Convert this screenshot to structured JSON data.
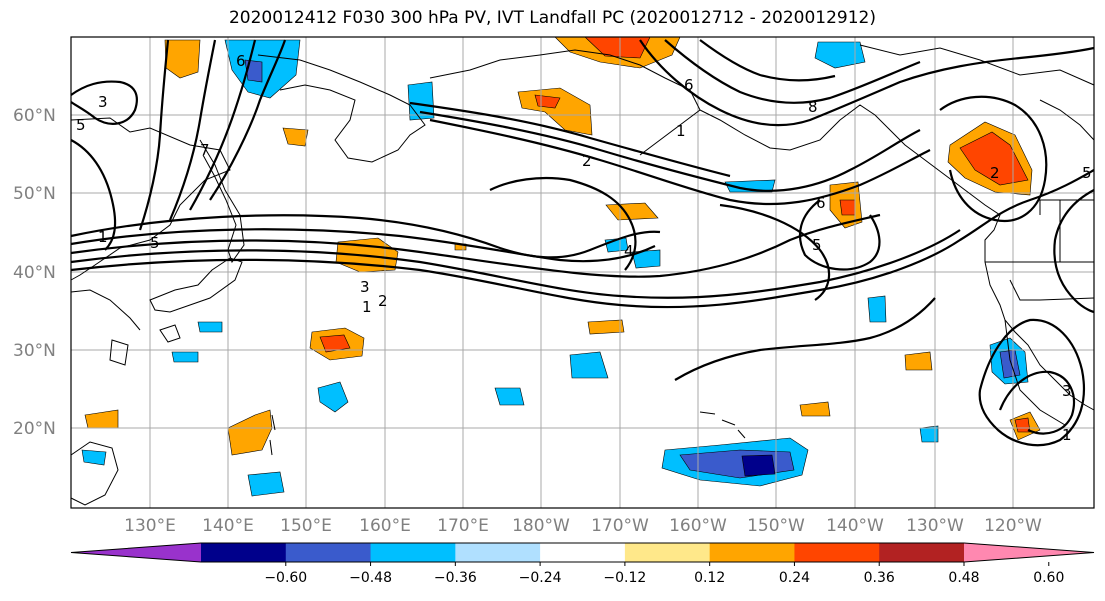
{
  "title": "2020012412 F030 300 hPa PV, IVT Landfall PC (2020012712 - 2020012912)",
  "lon_labels": [
    "130°E",
    "140°E",
    "150°E",
    "160°E",
    "170°E",
    "180°W",
    "170°W",
    "160°W",
    "150°W",
    "140°W",
    "130°W",
    "120°W"
  ],
  "lat_labels": [
    "60°N",
    "50°N",
    "40°N",
    "30°N",
    "20°N"
  ],
  "colorbar": {
    "ticks": [
      "−0.60",
      "−0.48",
      "−0.36",
      "−0.24",
      "−0.12",
      "0.12",
      "0.24",
      "0.36",
      "0.48",
      "0.60"
    ],
    "colors": [
      "#9932cc",
      "#00008b",
      "#3a5bcc",
      "#00bfff",
      "#b0e0ff",
      "#ffffff",
      "#ffe88a",
      "#ffa500",
      "#ff4500",
      "#b22222",
      "#ff88b0"
    ]
  },
  "contour_labels": [
    "3",
    "5",
    "6",
    "7",
    "1",
    "5",
    "3",
    "2",
    "1",
    "4",
    "5",
    "6",
    "8",
    "1",
    "2",
    "2",
    "3",
    "1",
    "6",
    "5"
  ]
}
